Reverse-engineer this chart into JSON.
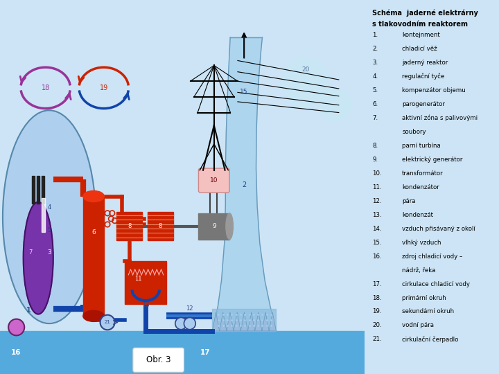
{
  "bg_color": "#cce4f5",
  "title_line1": "Schéma  jaderné elektrárny",
  "title_line2": "s tlakovodním reaktorem",
  "legend_items": [
    [
      "1.",
      "kontejnment"
    ],
    [
      "2.",
      "chladicí věž"
    ],
    [
      "3.",
      "jaderný reaktor"
    ],
    [
      "4.",
      "regulační tyče"
    ],
    [
      "5.",
      "kompenzátor objemu"
    ],
    [
      "6.",
      "parogenerátor"
    ],
    [
      "7.",
      "aktivní zóna s palivovými"
    ],
    [
      "",
      "soubory"
    ],
    [
      "8.",
      "parní turbína"
    ],
    [
      "9.",
      "elektrický generátor"
    ],
    [
      "10.",
      "transformátor"
    ],
    [
      "11.",
      "kondenzátor"
    ],
    [
      "12.",
      "pára"
    ],
    [
      "13.",
      "kondenzát"
    ],
    [
      "14.",
      "vzduch přisávaný z okolí"
    ],
    [
      "15.",
      "vlhký vzduch"
    ],
    [
      "16.",
      "zdroj chladicí vody –"
    ],
    [
      "",
      "nádrž, řeka"
    ],
    [
      "17.",
      "cirkulace chladicí vody"
    ],
    [
      "18.",
      "primární okruh"
    ],
    [
      "19.",
      "sekundární okruh"
    ],
    [
      "20.",
      "vodní pára"
    ],
    [
      "21.",
      "cirkulační čerpadlo"
    ]
  ],
  "obr_label": "Obr. 3",
  "water_color": "#55aadd",
  "water_light": "#aad4ee",
  "red_color": "#cc2200",
  "dark_blue": "#1144aa",
  "mid_blue": "#3377cc",
  "purple_color": "#993399",
  "dome_color": "#aaccee",
  "reactor_color": "#7733aa",
  "gray_color": "#777777",
  "pink_color": "#f5c0c0",
  "panel_bg": "#ddeef8"
}
